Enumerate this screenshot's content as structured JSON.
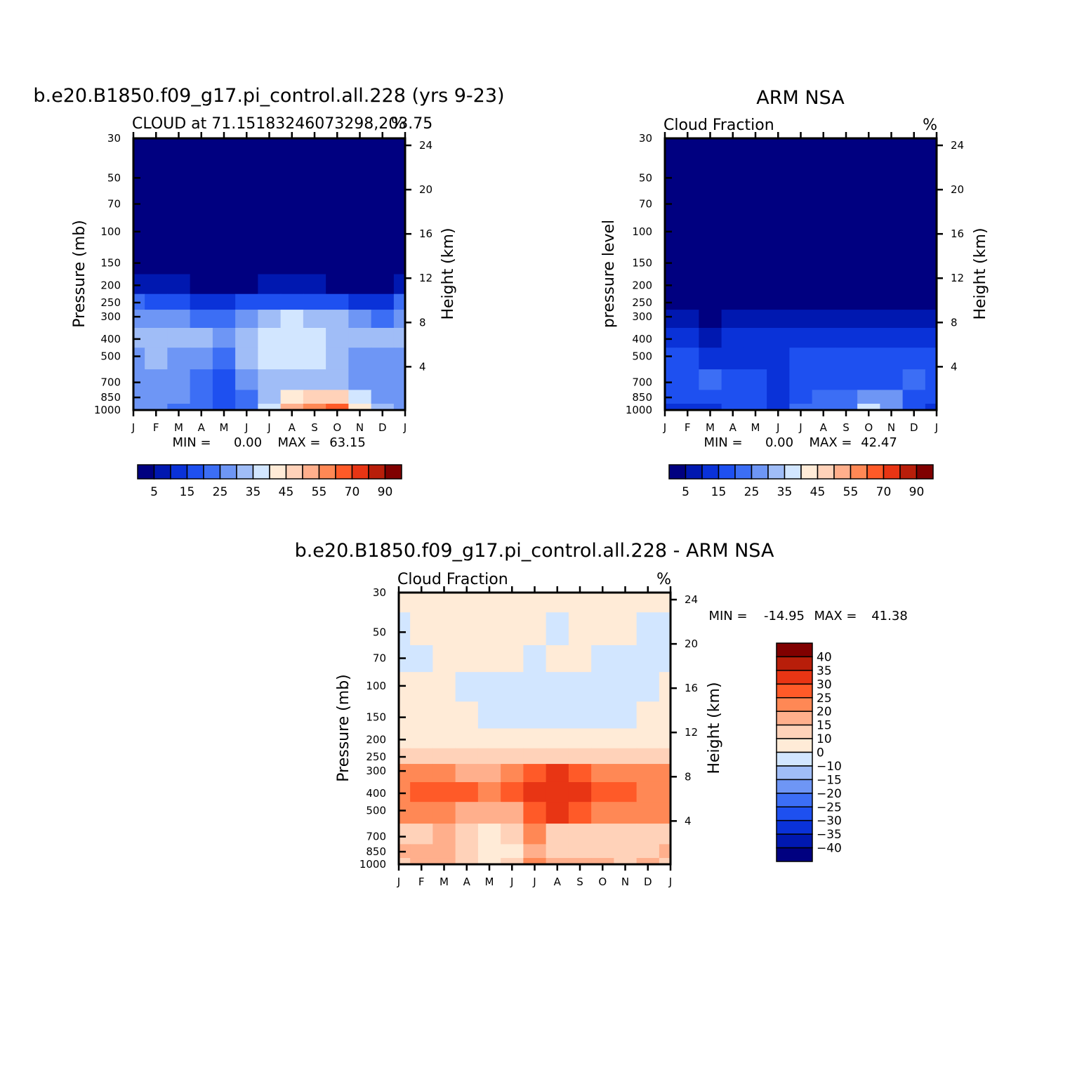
{
  "figure_title": "b.e20.B1850.f09_g17.pi_control.all.228 (yrs 9-23)",
  "colors": {
    "model_palette": [
      "#000080",
      "#0018b0",
      "#0a32d8",
      "#1e50f0",
      "#3c6ef5",
      "#6e96f5",
      "#a0bdf7",
      "#d2e6ff",
      "#ffebd7",
      "#ffd2b9",
      "#ffaf8c",
      "#ff8855",
      "#ff5a28",
      "#e83514",
      "#b81e0a",
      "#800000"
    ],
    "diff_palette": [
      "#000080",
      "#0018b0",
      "#0a32d8",
      "#1e50f0",
      "#3c6ef5",
      "#6e96f5",
      "#a0bdf7",
      "#d2e6ff",
      "#ffebd7",
      "#ffd2b9",
      "#ffaf8c",
      "#ff8855",
      "#ff5a28",
      "#e83514",
      "#b81e0a",
      "#800000"
    ]
  },
  "chart_data": [
    {
      "id": "model",
      "type": "heatmap",
      "title": "b.e20.B1850.f09_g17.pi_control.all.228 (yrs 9-23)",
      "subtitle_left": "CLOUD at 71.15183246073298,203.75",
      "subtitle_right": "%",
      "ylabel": "Pressure (mb)",
      "y2label": "Height (km)",
      "months": [
        "J",
        "F",
        "M",
        "A",
        "M",
        "J",
        "J",
        "A",
        "S",
        "O",
        "N",
        "D",
        "J"
      ],
      "pressure_ticks": [
        "30",
        "50",
        "70",
        "100",
        "150",
        "200",
        "250",
        "300",
        "400",
        "500",
        "700",
        "850",
        "1000"
      ],
      "height_ticks": [
        "24",
        "20",
        "16",
        "12",
        "8",
        "4"
      ],
      "min_label": "MIN =",
      "min_value": "0.00",
      "max_label": "MAX =",
      "max_value": "63.15",
      "colorbar_labels": [
        "5",
        "15",
        "25",
        "35",
        "45",
        "55",
        "70",
        "90"
      ],
      "levels": [
        0,
        5,
        10,
        15,
        20,
        25,
        30,
        35,
        40,
        45,
        50,
        55,
        60,
        70,
        80,
        90,
        100
      ],
      "values_by_level": [
        [
          1,
          1,
          1,
          1,
          1,
          1,
          1,
          1,
          1,
          1,
          1,
          1,
          1
        ],
        [
          1,
          1,
          1,
          1,
          1,
          1,
          1,
          1,
          1,
          1,
          1,
          1,
          1
        ],
        [
          1,
          1,
          1,
          1,
          1,
          1,
          1,
          1,
          1,
          1,
          1,
          1,
          1
        ],
        [
          1,
          1,
          1,
          1,
          1,
          1,
          1,
          1,
          1,
          1,
          1,
          1,
          1
        ],
        [
          3,
          3,
          2,
          1,
          1,
          1,
          1,
          1,
          1,
          1,
          1,
          1,
          3
        ],
        [
          8,
          8,
          7,
          4,
          3,
          4,
          5,
          5,
          5,
          4,
          3,
          2,
          8
        ],
        [
          20,
          19,
          17,
          14,
          13,
          15,
          18,
          18,
          17,
          15,
          13,
          10,
          20
        ],
        [
          27,
          28,
          26,
          22,
          23,
          28,
          33,
          37,
          34,
          30,
          28,
          22,
          27
        ],
        [
          32,
          33,
          31,
          31,
          28,
          34,
          36,
          37,
          36,
          32,
          30,
          30,
          32
        ],
        [
          28,
          30,
          29,
          26,
          22,
          30,
          36,
          37,
          36,
          32,
          28,
          26,
          28
        ],
        [
          27,
          27,
          25,
          22,
          18,
          25,
          30,
          32,
          32,
          33,
          28,
          26,
          27
        ],
        [
          26,
          27,
          27,
          20,
          17,
          24,
          30,
          44,
          48,
          47,
          35,
          27,
          26
        ],
        [
          27,
          27,
          24,
          22,
          15,
          22,
          37,
          50,
          55,
          60,
          40,
          30,
          27
        ]
      ]
    },
    {
      "id": "obs",
      "type": "heatmap",
      "title": "ARM NSA",
      "subtitle_left": "Cloud Fraction",
      "subtitle_right": "%",
      "ylabel": "pressure level",
      "y2label": "Height (km)",
      "months": [
        "J",
        "F",
        "M",
        "A",
        "M",
        "J",
        "J",
        "A",
        "S",
        "O",
        "N",
        "D",
        "J"
      ],
      "pressure_ticks": [
        "30",
        "50",
        "70",
        "100",
        "150",
        "200",
        "250",
        "300",
        "400",
        "500",
        "700",
        "850",
        "1000"
      ],
      "height_ticks": [
        "24",
        "20",
        "16",
        "12",
        "8",
        "4"
      ],
      "min_label": "MIN =",
      "min_value": "0.00",
      "max_label": "MAX =",
      "max_value": "42.47",
      "colorbar_labels": [
        "5",
        "15",
        "25",
        "35",
        "45",
        "55",
        "70",
        "90"
      ],
      "levels": [
        0,
        5,
        10,
        15,
        20,
        25,
        30,
        35,
        40,
        45,
        50,
        55,
        60,
        70,
        80,
        90,
        100
      ],
      "values_by_level": [
        [
          1,
          1,
          1,
          1,
          1,
          1,
          1,
          1,
          1,
          1,
          1,
          1,
          1
        ],
        [
          1,
          1,
          1,
          1,
          1,
          1,
          1,
          1,
          1,
          1,
          1,
          1,
          1
        ],
        [
          1,
          1,
          1,
          1,
          1,
          1,
          1,
          1,
          1,
          1,
          1,
          1,
          1
        ],
        [
          1,
          1,
          1,
          1,
          1,
          1,
          1,
          1,
          1,
          1,
          1,
          1,
          1
        ],
        [
          1,
          1,
          1,
          1,
          1,
          1,
          1,
          1,
          1,
          1,
          1,
          1,
          1
        ],
        [
          2,
          2,
          2,
          2,
          2,
          2,
          2,
          2,
          2,
          2,
          2,
          2,
          2
        ],
        [
          3,
          3,
          3,
          3,
          3,
          3,
          4,
          4,
          4,
          3,
          3,
          3,
          3
        ],
        [
          7,
          7,
          4,
          5,
          6,
          7,
          8,
          8,
          7,
          6,
          6,
          7,
          7
        ],
        [
          12,
          11,
          9,
          10,
          11,
          10,
          14,
          13,
          12,
          11,
          11,
          13,
          12
        ],
        [
          15,
          16,
          14,
          14,
          14,
          12,
          15,
          16,
          15,
          15,
          15,
          17,
          15
        ],
        [
          16,
          18,
          20,
          19,
          17,
          12,
          19,
          19,
          18,
          18,
          19,
          21,
          16
        ],
        [
          16,
          17,
          18,
          18,
          17,
          10,
          17,
          20,
          22,
          28,
          25,
          19,
          16
        ],
        [
          12,
          13,
          14,
          16,
          18,
          14,
          20,
          24,
          22,
          38,
          25,
          17,
          12
        ]
      ]
    },
    {
      "id": "diff",
      "type": "heatmap",
      "title": "b.e20.B1850.f09_g17.pi_control.all.228 - ARM NSA",
      "subtitle_left": "Cloud Fraction",
      "subtitle_right": "%",
      "ylabel": "Pressure (mb)",
      "y2label": "Height (km)",
      "months": [
        "J",
        "F",
        "M",
        "A",
        "M",
        "J",
        "J",
        "A",
        "S",
        "O",
        "N",
        "D",
        "J"
      ],
      "pressure_ticks": [
        "30",
        "50",
        "70",
        "100",
        "150",
        "200",
        "250",
        "300",
        "400",
        "500",
        "700",
        "850",
        "1000"
      ],
      "height_ticks": [
        "24",
        "20",
        "16",
        "12",
        "8",
        "4"
      ],
      "min_label": "MIN =",
      "min_value": "-14.95",
      "max_label": "MAX =",
      "max_value": "41.38",
      "colorbar_labels": [
        "40",
        "35",
        "30",
        "25",
        "20",
        "15",
        "10",
        "0",
        "-10",
        "-15",
        "-20",
        "-25",
        "-30",
        "-35",
        "-40"
      ],
      "levels": [
        -100,
        -40,
        -35,
        -30,
        -25,
        -20,
        -15,
        -10,
        0,
        10,
        15,
        20,
        25,
        30,
        35,
        40,
        100
      ],
      "values_by_level": [
        [
          1,
          1,
          1,
          1,
          1,
          1,
          1,
          1,
          1,
          1,
          1,
          1,
          1
        ],
        [
          -1,
          1,
          1,
          1,
          1,
          1,
          1,
          -1,
          1,
          1,
          1,
          -1,
          -1
        ],
        [
          -1,
          -1,
          1,
          1,
          1,
          1,
          -1,
          1,
          1,
          -1,
          -1,
          -1,
          -1
        ],
        [
          1,
          1,
          1,
          -1,
          -1,
          -1,
          -1,
          -1,
          -1,
          -1,
          -1,
          -1,
          1
        ],
        [
          1,
          1,
          1,
          1,
          -1,
          -1,
          -1,
          -1,
          -1,
          -1,
          -1,
          1,
          1
        ],
        [
          3,
          3,
          3,
          3,
          3,
          3,
          3,
          3,
          3,
          3,
          3,
          3,
          3
        ],
        [
          12,
          12,
          12,
          11,
          10,
          10,
          10,
          10,
          10,
          11,
          12,
          12,
          12
        ],
        [
          22,
          22,
          20,
          18,
          17,
          22,
          26,
          30,
          26,
          22,
          21,
          22,
          22
        ],
        [
          24,
          25,
          27,
          25,
          22,
          25,
          30,
          33,
          30,
          28,
          25,
          24,
          24
        ],
        [
          21,
          21,
          22,
          17,
          18,
          18,
          25,
          30,
          26,
          22,
          21,
          22,
          21
        ],
        [
          12,
          14,
          16,
          10,
          8,
          13,
          20,
          13,
          11,
          13,
          13,
          13,
          12
        ],
        [
          15,
          17,
          19,
          12,
          7,
          9,
          16,
          10,
          10,
          10,
          13,
          14,
          15
        ],
        [
          14,
          15,
          18,
          14,
          8,
          12,
          23,
          18,
          19,
          15,
          14,
          15,
          14
        ]
      ]
    }
  ]
}
